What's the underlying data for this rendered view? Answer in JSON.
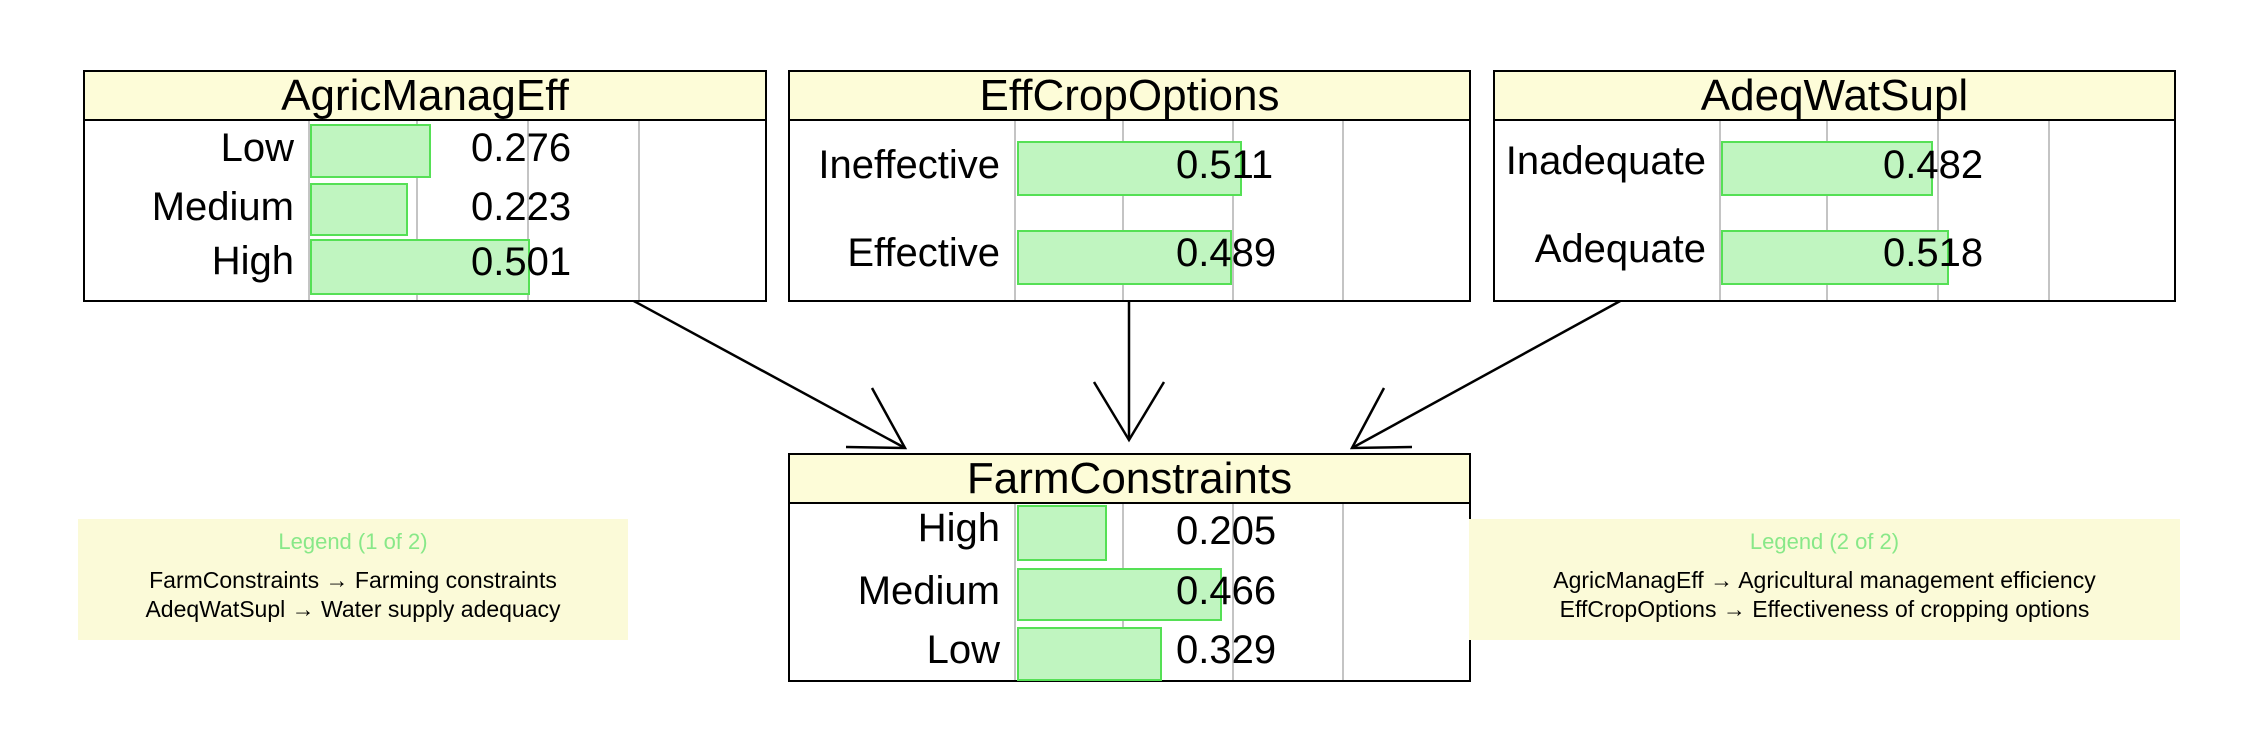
{
  "nodes": [
    {
      "id": "agric",
      "title": "AgricManagEff",
      "states": [
        {
          "label": "Low",
          "value": 0.276,
          "text": "0.276"
        },
        {
          "label": "Medium",
          "value": 0.223,
          "text": "0.223"
        },
        {
          "label": "High",
          "value": 0.501,
          "text": "0.501"
        }
      ]
    },
    {
      "id": "effcrop",
      "title": "EffCropOptions",
      "states": [
        {
          "label": "Ineffective",
          "value": 0.511,
          "text": "0.511"
        },
        {
          "label": "Effective",
          "value": 0.489,
          "text": "0.489"
        }
      ]
    },
    {
      "id": "adeqwat",
      "title": "AdeqWatSupl",
      "states": [
        {
          "label": "Inadequate",
          "value": 0.482,
          "text": "0.482"
        },
        {
          "label": "Adequate",
          "value": 0.518,
          "text": "0.518"
        }
      ]
    },
    {
      "id": "farm",
      "title": "FarmConstraints",
      "states": [
        {
          "label": "High",
          "value": 0.205,
          "text": "0.205"
        },
        {
          "label": "Medium",
          "value": 0.466,
          "text": "0.466"
        },
        {
          "label": "Low",
          "value": 0.329,
          "text": "0.329"
        }
      ]
    }
  ],
  "edges": [
    {
      "from": "AgricManagEff",
      "to": "FarmConstraints"
    },
    {
      "from": "EffCropOptions",
      "to": "FarmConstraints"
    },
    {
      "from": "AdeqWatSupl",
      "to": "FarmConstraints"
    }
  ],
  "legends": [
    {
      "title": "Legend (1 of 2)",
      "lines": [
        "FarmConstraints → Farming constraints",
        "AdeqWatSupl → Water supply adequacy"
      ]
    },
    {
      "title": "Legend (2 of 2)",
      "lines": [
        "AgricManagEff → Agricultural management efficiency",
        "EffCropOptions → Effectiveness of cropping options"
      ]
    }
  ],
  "colors": {
    "title_fill": "#fdfcd8",
    "bar_fill": "#c0f5c0",
    "bar_border": "#55e055",
    "grid": "#c4c4c4",
    "legend_fill": "#fbfad8",
    "legend_title": "#88e888"
  }
}
